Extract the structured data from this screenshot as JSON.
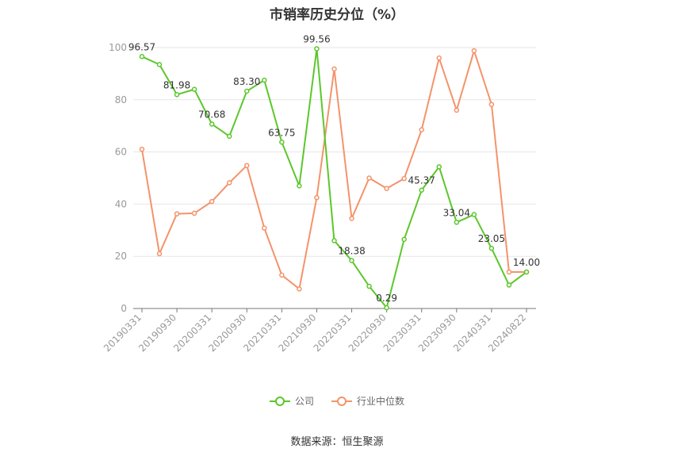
{
  "title": "市销率历史分位（%）",
  "source": "数据来源：恒生聚源",
  "colors": {
    "company": "#5cc72b",
    "industry": "#f4936b"
  },
  "legend": [
    {
      "key": "company",
      "label": "公司"
    },
    {
      "key": "industry",
      "label": "行业中位数"
    }
  ],
  "chart_data": {
    "type": "line",
    "title": "市销率历史分位（%）",
    "xlabel": "",
    "ylabel": "",
    "ylim": [
      0,
      100
    ],
    "yticks": [
      0,
      20,
      40,
      60,
      80,
      100
    ],
    "grid": true,
    "legend_position": "bottom",
    "x_tick_labels": [
      "20190331",
      "20190930",
      "20200331",
      "20200930",
      "20210331",
      "20210930",
      "20220331",
      "20220930",
      "20230331",
      "20230930",
      "20240331",
      "20240822"
    ],
    "x": [
      "20190331",
      "20190630",
      "20190930",
      "20191231",
      "20200331",
      "20200630",
      "20200930",
      "20201231",
      "20210331",
      "20210630",
      "20210930",
      "20211231",
      "20220331",
      "20220630",
      "20220930",
      "20221231",
      "20230331",
      "20230630",
      "20230930",
      "20231231",
      "20240331",
      "20240630",
      "20240822"
    ],
    "series": [
      {
        "key": "company",
        "name": "公司",
        "values": [
          96.57,
          93.5,
          81.98,
          84.0,
          70.68,
          66.0,
          83.3,
          87.5,
          63.75,
          47.0,
          99.56,
          26.0,
          18.38,
          8.5,
          0.29,
          26.5,
          45.37,
          54.3,
          33.04,
          36.0,
          23.05,
          9.0,
          14.0
        ],
        "labels": [
          "96.57",
          "",
          "81.98",
          "",
          "70.68",
          "",
          "83.30",
          "",
          "63.75",
          "",
          "99.56",
          "",
          "18.38",
          "",
          "0.29",
          "",
          "45.37",
          "",
          "33.04",
          "",
          "23.05",
          "",
          "14.00"
        ]
      },
      {
        "key": "industry",
        "name": "行业中位数",
        "values": [
          61.0,
          21.0,
          36.3,
          36.5,
          41.0,
          48.2,
          54.8,
          30.8,
          12.8,
          7.5,
          42.5,
          91.8,
          34.5,
          50.0,
          46.0,
          49.8,
          68.5,
          96.0,
          76.0,
          98.8,
          78.2,
          14.0,
          14.0
        ],
        "labels": []
      }
    ]
  }
}
